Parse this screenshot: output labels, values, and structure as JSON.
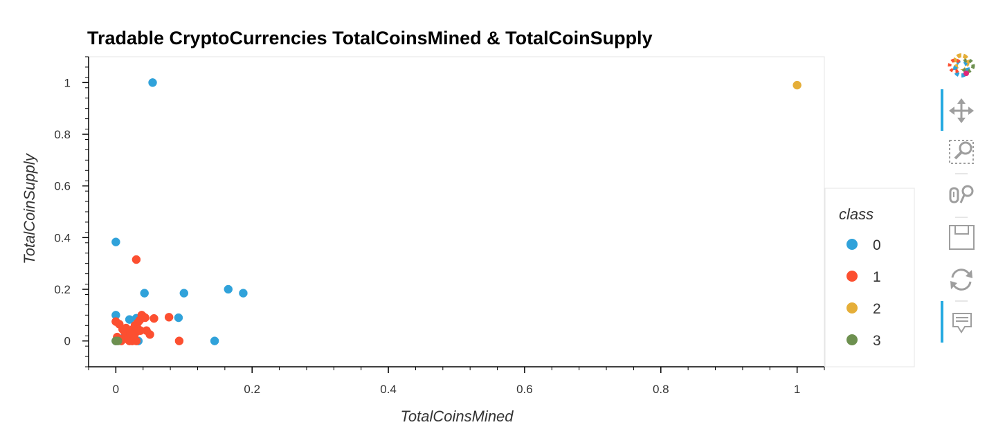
{
  "chart_data": {
    "type": "scatter",
    "title": "Tradable CryptoCurrencies TotalCoinsMined & TotalCoinSupply",
    "xlabel": "TotalCoinsMined",
    "ylabel": "TotalCoinSupply",
    "xlim": [
      -0.04,
      1.04
    ],
    "ylim": [
      -0.1,
      1.1
    ],
    "xticks": [
      0,
      0.2,
      0.4,
      0.6,
      0.8,
      1
    ],
    "xtick_labels": [
      "0",
      "0.2",
      "0.4",
      "0.6",
      "0.8",
      "1"
    ],
    "yticks": [
      0,
      0.2,
      0.4,
      0.6,
      0.8,
      1
    ],
    "ytick_labels": [
      "0",
      "0.2",
      "0.4",
      "0.6",
      "0.8",
      "1"
    ],
    "grid": false,
    "legend": {
      "title": "class",
      "placement": "right"
    },
    "series": [
      {
        "name": "0",
        "color": "#30a2da",
        "points": [
          [
            0.054,
            1.0
          ],
          [
            0.0,
            0.383
          ],
          [
            0.042,
            0.185
          ],
          [
            0.1,
            0.185
          ],
          [
            0.165,
            0.2
          ],
          [
            0.187,
            0.185
          ],
          [
            0.0,
            0.1
          ],
          [
            0.02,
            0.083
          ],
          [
            0.03,
            0.088
          ],
          [
            0.092,
            0.09
          ],
          [
            0.145,
            0.0
          ],
          [
            0.033,
            0.0
          ],
          [
            0.0,
            0.0
          ],
          [
            0.01,
            0.01
          ],
          [
            0.025,
            0.02
          ]
        ]
      },
      {
        "name": "1",
        "color": "#fc4f30",
        "points": [
          [
            0.03,
            0.315
          ],
          [
            0.0,
            0.075
          ],
          [
            0.005,
            0.065
          ],
          [
            0.01,
            0.045
          ],
          [
            0.015,
            0.05
          ],
          [
            0.002,
            0.015
          ],
          [
            0.008,
            0.0
          ],
          [
            0.012,
            0.01
          ],
          [
            0.016,
            0.03
          ],
          [
            0.02,
            0.0
          ],
          [
            0.022,
            0.02
          ],
          [
            0.025,
            0.045
          ],
          [
            0.028,
            0.06
          ],
          [
            0.03,
            0.035
          ],
          [
            0.032,
            0.07
          ],
          [
            0.035,
            0.08
          ],
          [
            0.038,
            0.1
          ],
          [
            0.04,
            0.095
          ],
          [
            0.043,
            0.09
          ],
          [
            0.045,
            0.04
          ],
          [
            0.05,
            0.025
          ],
          [
            0.056,
            0.087
          ],
          [
            0.078,
            0.092
          ],
          [
            0.093,
            0.0
          ],
          [
            0.018,
            0.005
          ],
          [
            0.024,
            0.0
          ],
          [
            0.027,
            0.012
          ],
          [
            0.03,
            0.0
          ],
          [
            0.033,
            0.045
          ],
          [
            0.036,
            0.04
          ],
          [
            0.013,
            0.035
          ],
          [
            0.021,
            0.03
          ]
        ]
      },
      {
        "name": "2",
        "color": "#e5ae38",
        "points": [
          [
            1.0,
            0.99
          ]
        ]
      },
      {
        "name": "3",
        "color": "#6d904f",
        "points": [
          [
            0.0,
            0.0
          ],
          [
            0.003,
            0.0
          ]
        ]
      }
    ]
  },
  "toolbar": {
    "tools": [
      {
        "name": "bokeh-logo-icon",
        "active": false,
        "interactable": false
      },
      {
        "name": "pan-tool-icon",
        "active": true,
        "interactable": true
      },
      {
        "name": "box-zoom-tool-icon",
        "active": false,
        "interactable": true
      },
      {
        "name": "wheel-zoom-tool-icon",
        "active": false,
        "interactable": true
      },
      {
        "name": "save-tool-icon",
        "active": false,
        "interactable": true
      },
      {
        "name": "reset-tool-icon",
        "active": false,
        "interactable": true
      },
      {
        "name": "hover-tool-icon",
        "active": true,
        "interactable": true
      }
    ],
    "active_color": "#26aae1",
    "icon_color": "#9e9e9e"
  }
}
